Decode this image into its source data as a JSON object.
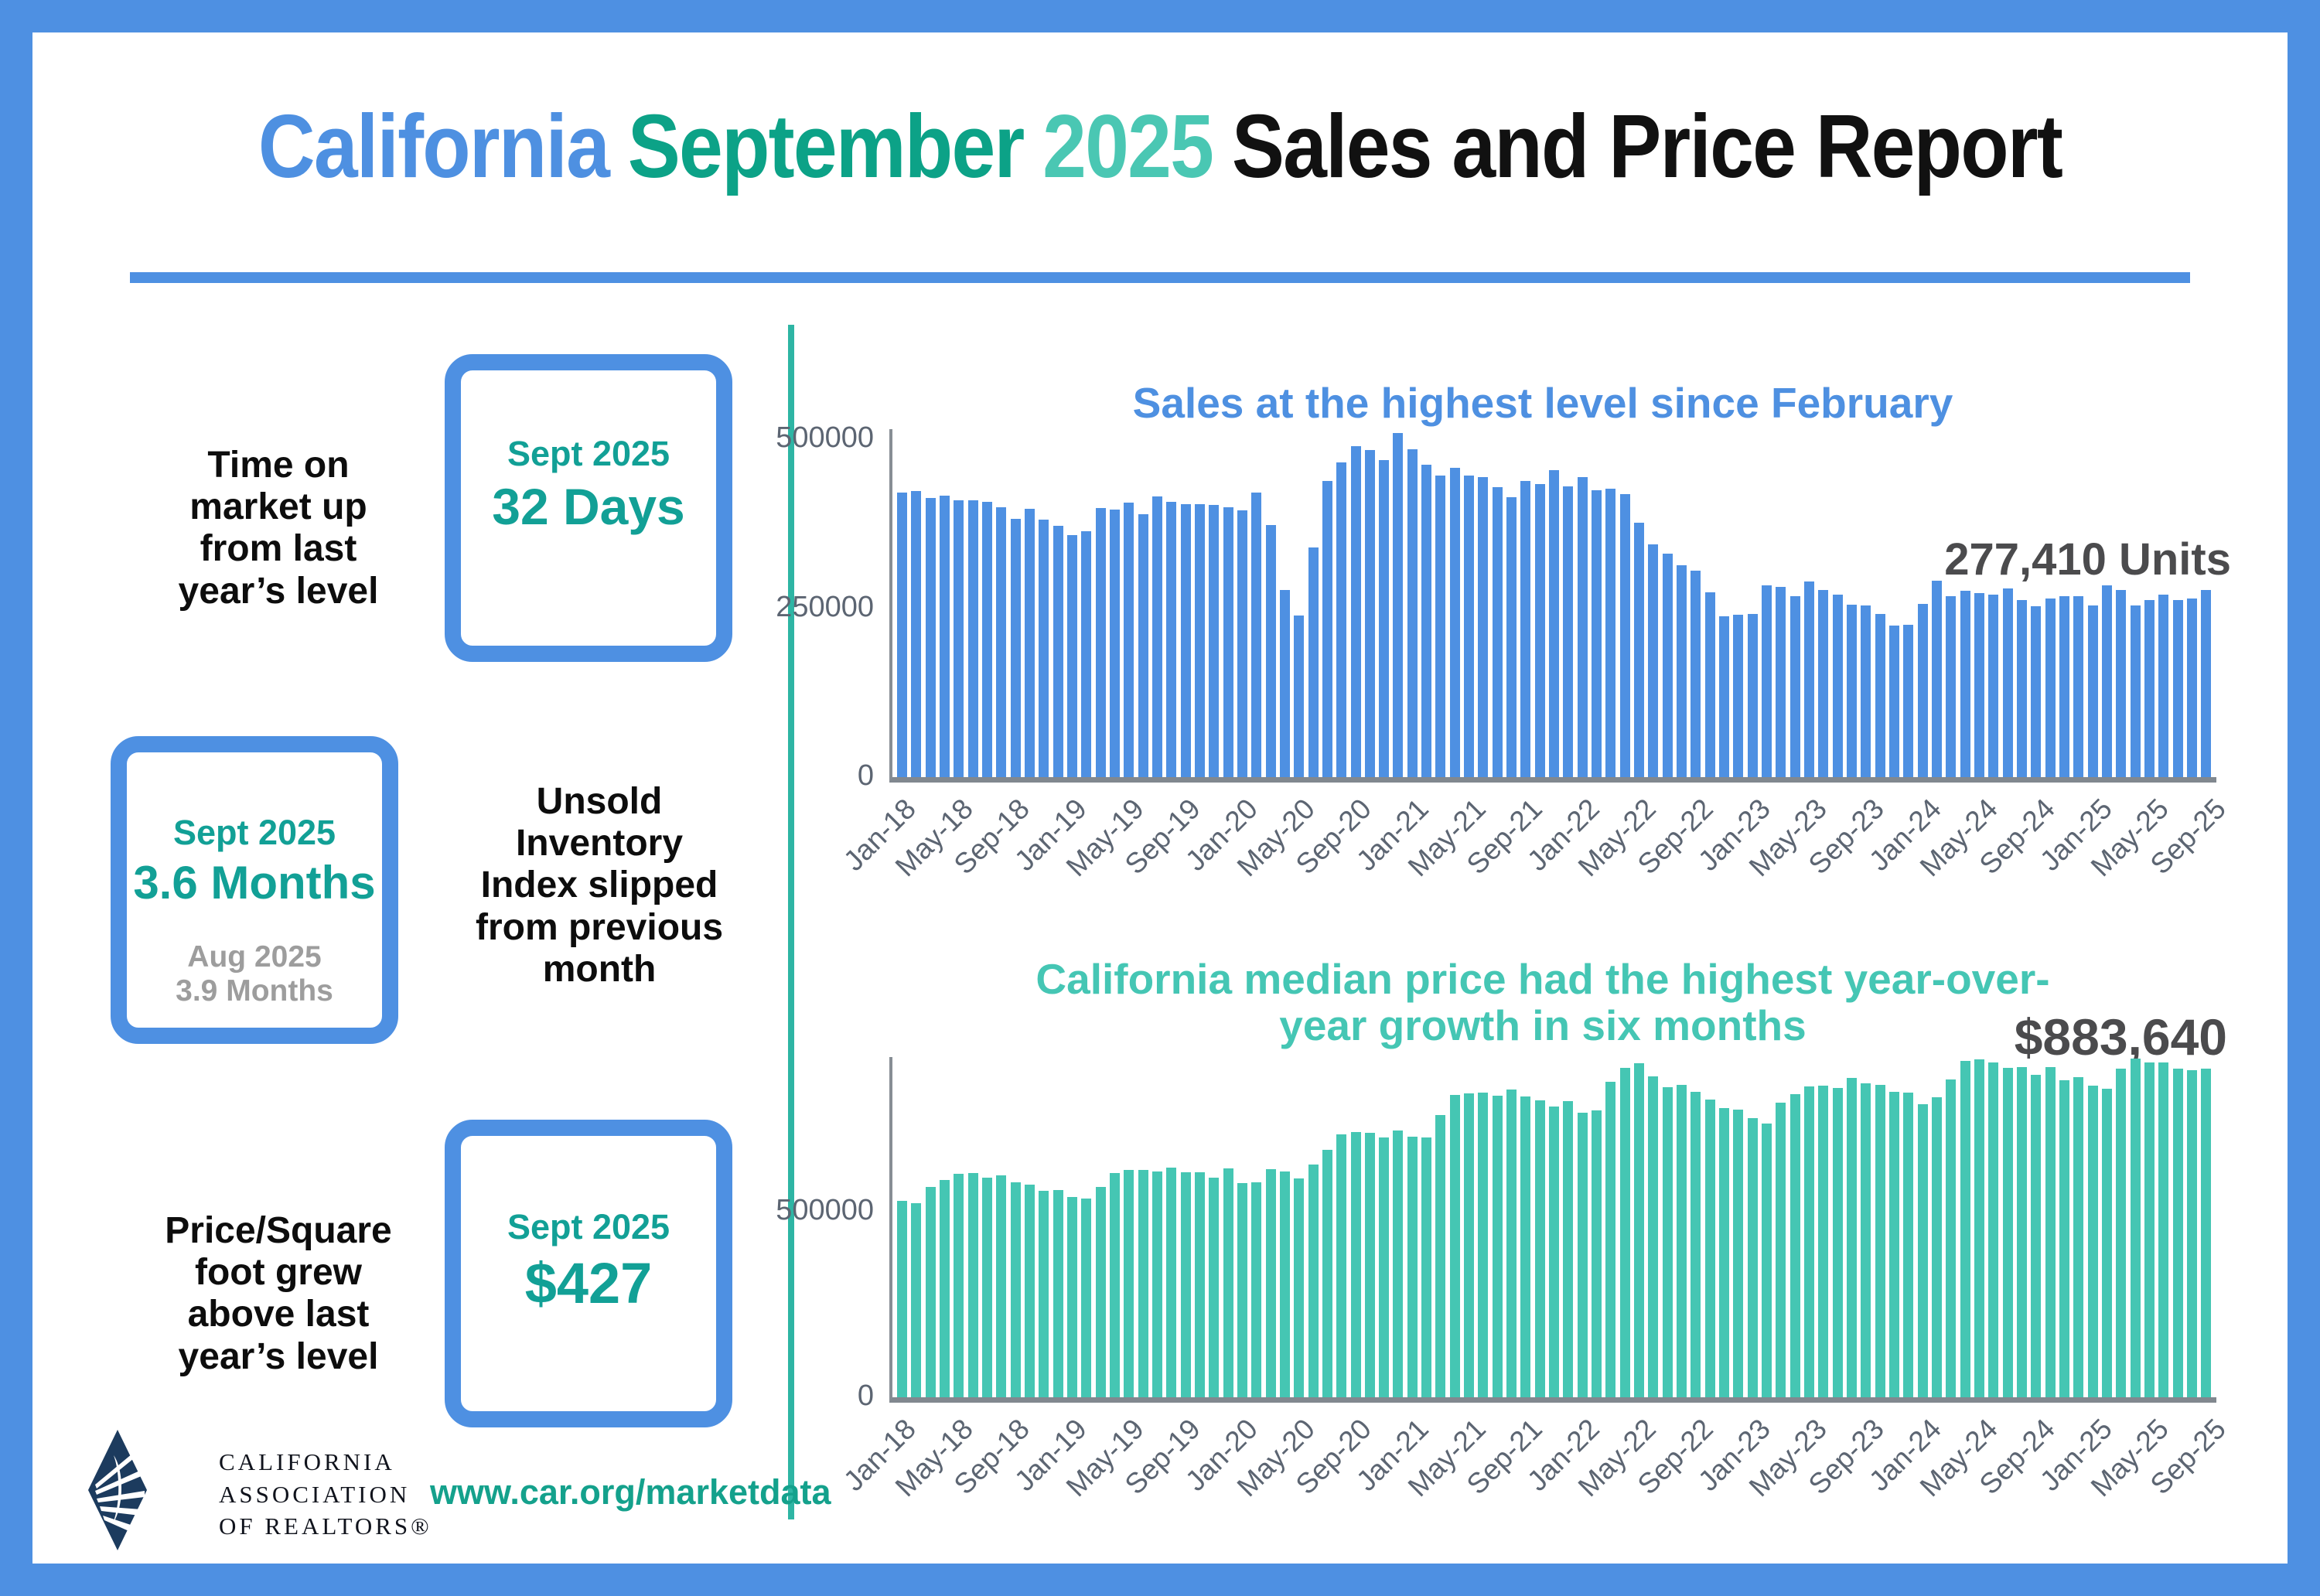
{
  "title": {
    "parts": [
      {
        "text": "California",
        "color": "#4E90E1"
      },
      {
        "text": "September",
        "color": "#0CA287"
      },
      {
        "text": "2025",
        "color": "#4AC7B3"
      },
      {
        "text": "Sales and Price Report",
        "color": "#111111"
      }
    ]
  },
  "colors": {
    "frame_blue": "#4E90E2",
    "divider_teal": "#2EB5A4",
    "stat_teal": "#12A096",
    "stat_gray": "#9D9D9D",
    "axis_gray": "#5C6572",
    "annotation_gray": "#4B4B4D",
    "url_teal": "#14A18C"
  },
  "stats": [
    {
      "label": "Time on market up from last year’s level",
      "box": {
        "period": "Sept 2025",
        "value": "32 Days"
      }
    },
    {
      "label": "Unsold Inventory Index slipped from previous month",
      "box": {
        "period": "Sept 2025",
        "value": "3.6 Months",
        "prev_period": "Aug 2025",
        "prev_value": "3.9 Months"
      }
    },
    {
      "label": "Price/Square foot grew above last year’s level",
      "box": {
        "period": "Sept 2025",
        "value": "$427"
      }
    }
  ],
  "footer": {
    "org_lines": [
      "CALIFORNIA",
      "ASSOCIATION",
      "OF REALTORS®"
    ],
    "url": "www.car.org/marketdata"
  },
  "chart_data": [
    {
      "type": "bar",
      "title": "Sales at the highest level since February",
      "title_color": "#4E90E1",
      "bar_color": "#4E90E2",
      "annotation": "277,410 Units",
      "annotation_color": "#4B4B4D",
      "xlabel": "",
      "ylabel": "",
      "ylim": [
        0,
        515000
      ],
      "grid": false,
      "legend": "none",
      "x_tick_every": 4,
      "yticks": [
        {
          "label": "500000",
          "value": 500000
        },
        {
          "label": "250000",
          "value": 250000
        },
        {
          "label": "0",
          "value": 0
        }
      ],
      "categories": [
        "Jan-18",
        "Feb-18",
        "Mar-18",
        "Apr-18",
        "May-18",
        "Jun-18",
        "Jul-18",
        "Aug-18",
        "Sep-18",
        "Oct-18",
        "Nov-18",
        "Dec-18",
        "Jan-19",
        "Feb-19",
        "Mar-19",
        "Apr-19",
        "May-19",
        "Jun-19",
        "Jul-19",
        "Aug-19",
        "Sep-19",
        "Oct-19",
        "Nov-19",
        "Dec-19",
        "Jan-20",
        "Feb-20",
        "Mar-20",
        "Apr-20",
        "May-20",
        "Jun-20",
        "Jul-20",
        "Aug-20",
        "Sep-20",
        "Oct-20",
        "Nov-20",
        "Dec-20",
        "Jan-21",
        "Feb-21",
        "Mar-21",
        "Apr-21",
        "May-21",
        "Jun-21",
        "Jul-21",
        "Aug-21",
        "Sep-21",
        "Oct-21",
        "Nov-21",
        "Dec-21",
        "Jan-22",
        "Feb-22",
        "Mar-22",
        "Apr-22",
        "May-22",
        "Jun-22",
        "Jul-22",
        "Aug-22",
        "Sep-22",
        "Oct-22",
        "Nov-22",
        "Dec-22",
        "Jan-23",
        "Feb-23",
        "Mar-23",
        "Apr-23",
        "May-23",
        "Jun-23",
        "Jul-23",
        "Aug-23",
        "Sep-23",
        "Oct-23",
        "Nov-23",
        "Dec-23",
        "Jan-24",
        "Feb-24",
        "Mar-24",
        "Apr-24",
        "May-24",
        "Jun-24",
        "Jul-24",
        "Aug-24",
        "Sep-24",
        "Oct-24",
        "Nov-24",
        "Dec-24",
        "Jan-25",
        "Feb-25",
        "Mar-25",
        "Apr-25",
        "May-25",
        "Jun-25",
        "Jul-25",
        "Aug-25",
        "Sep-25"
      ],
      "values": [
        420960,
        422910,
        412720,
        416790,
        409830,
        410080,
        406920,
        399600,
        382050,
        397060,
        381400,
        372260,
        357730,
        364020,
        397810,
        396070,
        406050,
        389520,
        415220,
        406890,
        404030,
        404240,
        402510,
        398880,
        395080,
        421670,
        373070,
        277440,
        238740,
        339910,
        437890,
        465400,
        489590,
        484510,
        469330,
        509750,
        484730,
        462720,
        446410,
        458170,
        445850,
        444520,
        428980,
        414860,
        438190,
        434170,
        454450,
        429860,
        444540,
        424610,
        426970,
        419040,
        377010,
        344970,
        330390,
        313540,
        305680,
        274040,
        237740,
        240330,
        241520,
        284010,
        281050,
        267880,
        289860,
        277490,
        270200,
        254740,
        253990,
        241770,
        223940,
        225160,
        256160,
        290130,
        267470,
        275540,
        272410,
        270420,
        279810,
        262050,
        253010,
        264870,
        267800,
        268180,
        254110,
        283540,
        277030,
        254190,
        262530,
        270370,
        262510,
        264850,
        277410
      ]
    },
    {
      "type": "bar",
      "title": "California median price had the highest year-over-year growth in six months",
      "title_color": "#45C6B4",
      "bar_color": "#45C6B3",
      "annotation": "$883,640",
      "annotation_color": "#4B4B4D",
      "xlabel": "",
      "ylabel": "",
      "ylim": [
        0,
        915000
      ],
      "grid": false,
      "legend": "none",
      "x_tick_every": 4,
      "yticks": [
        {
          "label": "500000",
          "value": 500000
        },
        {
          "label": "0",
          "value": 0
        }
      ],
      "categories": [
        "Jan-18",
        "Feb-18",
        "Mar-18",
        "Apr-18",
        "May-18",
        "Jun-18",
        "Jul-18",
        "Aug-18",
        "Sep-18",
        "Oct-18",
        "Nov-18",
        "Dec-18",
        "Jan-19",
        "Feb-19",
        "Mar-19",
        "Apr-19",
        "May-19",
        "Jun-19",
        "Jul-19",
        "Aug-19",
        "Sep-19",
        "Oct-19",
        "Nov-19",
        "Dec-19",
        "Jan-20",
        "Feb-20",
        "Mar-20",
        "Apr-20",
        "May-20",
        "Jun-20",
        "Jul-20",
        "Aug-20",
        "Sep-20",
        "Oct-20",
        "Nov-20",
        "Dec-20",
        "Jan-21",
        "Feb-21",
        "Mar-21",
        "Apr-21",
        "May-21",
        "Jun-21",
        "Jul-21",
        "Aug-21",
        "Sep-21",
        "Oct-21",
        "Nov-21",
        "Dec-21",
        "Jan-22",
        "Feb-22",
        "Mar-22",
        "Apr-22",
        "May-22",
        "Jun-22",
        "Jul-22",
        "Aug-22",
        "Sep-22",
        "Oct-22",
        "Nov-22",
        "Dec-22",
        "Jan-23",
        "Feb-23",
        "Mar-23",
        "Apr-23",
        "May-23",
        "Jun-23",
        "Jul-23",
        "Aug-23",
        "Sep-23",
        "Oct-23",
        "Nov-23",
        "Dec-23",
        "Jan-24",
        "Feb-24",
        "Mar-24",
        "Apr-24",
        "May-24",
        "Jun-24",
        "Jul-24",
        "Aug-24",
        "Sep-24",
        "Oct-24",
        "Nov-24",
        "Dec-24",
        "Jan-25",
        "Feb-25",
        "Mar-25",
        "Apr-25",
        "May-25",
        "Jun-25",
        "Jul-25",
        "Aug-25",
        "Sep-25"
      ],
      "values": [
        527780,
        522440,
        564830,
        584460,
        600860,
        602760,
        591460,
        596410,
        578850,
        572000,
        554760,
        557600,
        538690,
        534140,
        565880,
        602920,
        611190,
        611420,
        607990,
        617410,
        605680,
        605280,
        589770,
        615090,
        575160,
        578690,
        612440,
        606410,
        588070,
        626170,
        666320,
        706900,
        712430,
        711300,
        699000,
        717930,
        699890,
        699000,
        758990,
        813980,
        818260,
        819630,
        811170,
        827940,
        808890,
        798170,
        782480,
        796570,
        765580,
        771270,
        849080,
        884890,
        898980,
        863790,
        833910,
        839460,
        821680,
        801190,
        777500,
        774580,
        751330,
        735480,
        791490,
        815340,
        836110,
        838260,
        832340,
        859800,
        843340,
        840360,
        822200,
        819740,
        788940,
        806490,
        854490,
        904190,
        908040,
        900720,
        886560,
        888740,
        868150,
        888660,
        852880,
        861020,
        838850,
        829060,
        884050,
        910160,
        900170,
        899560,
        884050,
        880250,
        883640
      ]
    }
  ]
}
